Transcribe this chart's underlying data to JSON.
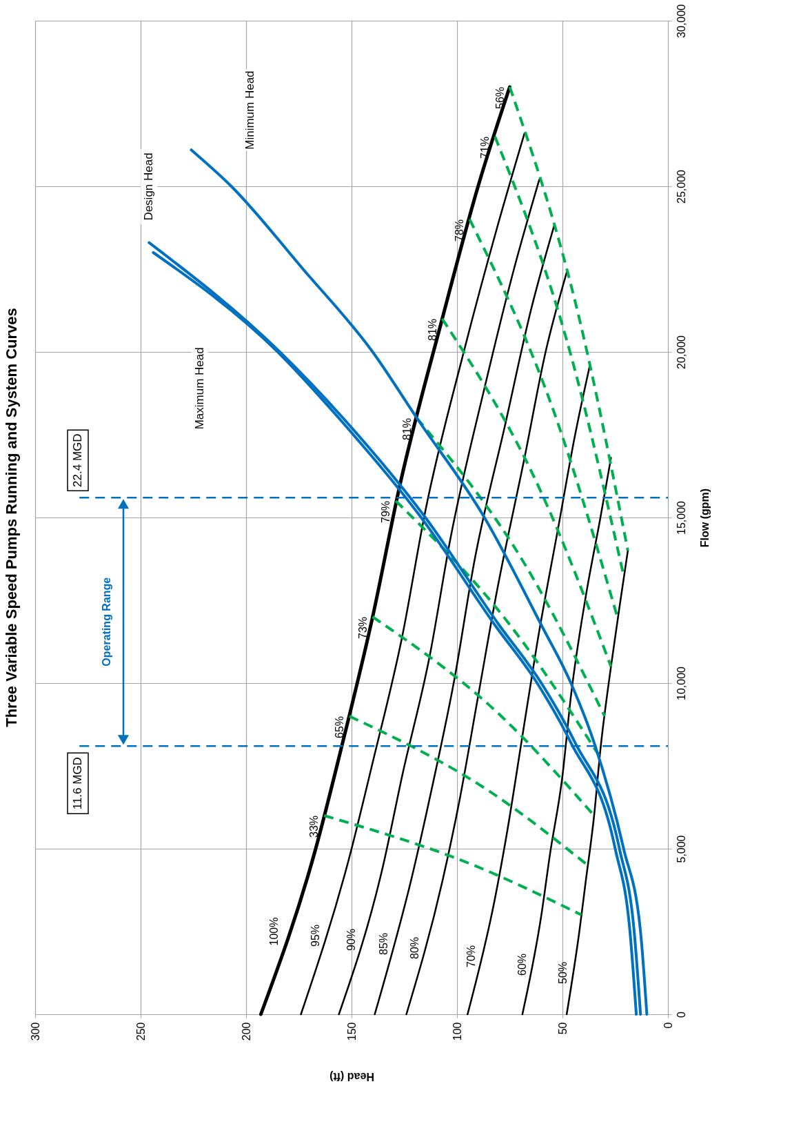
{
  "chart_data": {
    "type": "line",
    "title": "Three Variable Speed Pumps Running and System Curves",
    "xlabel": "Head (ft)",
    "ylabel": "Flow (gpm)",
    "xlim": [
      300,
      0
    ],
    "ylim": [
      0,
      30000
    ],
    "xticks": [
      300,
      250,
      200,
      150,
      100,
      50,
      0
    ],
    "yticks": [
      0,
      {
        "value": 5000,
        "label": "5,000"
      },
      {
        "value": 10000,
        "label": "10,000"
      },
      {
        "value": 15000,
        "label": "15,000"
      },
      {
        "value": 20000,
        "label": "20,000"
      },
      {
        "value": 25000,
        "label": "25,000"
      },
      {
        "value": 30000,
        "label": "30,000"
      }
    ],
    "grid": true,
    "line_style": "solid",
    "series": [
      {
        "name": "100%",
        "color": "#000000",
        "x": [
          193,
          167,
          155,
          140,
          127,
          107,
          90,
          75
        ],
        "values": [
          0,
          5000,
          8000,
          12000,
          16000,
          21000,
          25000,
          28000
        ]
      },
      {
        "name": "95%",
        "color": "#000000",
        "x": [
          174,
          151,
          140,
          126,
          115,
          97,
          81,
          68
        ],
        "values": [
          0,
          4750,
          7600,
          11400,
          15200,
          19950,
          23750,
          26600
        ]
      },
      {
        "name": "90%",
        "color": "#000000",
        "x": [
          156,
          135,
          126,
          113,
          103,
          87,
          73,
          61
        ],
        "values": [
          0,
          4500,
          7200,
          10800,
          14400,
          18900,
          22500,
          25200
        ]
      },
      {
        "name": "85%",
        "color": "#000000",
        "x": [
          139,
          121,
          112,
          101,
          92,
          77,
          65,
          54
        ],
        "values": [
          0,
          4250,
          6800,
          10200,
          13600,
          17850,
          21250,
          23800
        ]
      },
      {
        "name": "80%",
        "color": "#000000",
        "x": [
          124,
          107,
          99,
          90,
          81,
          68,
          58,
          48
        ],
        "values": [
          0,
          4000,
          6400,
          9600,
          12800,
          16800,
          20000,
          22400
        ]
      },
      {
        "name": "70%",
        "color": "#000000",
        "x": [
          95,
          82,
          76,
          69,
          62,
          52,
          44,
          37
        ],
        "values": [
          0,
          3500,
          5600,
          8400,
          11200,
          14700,
          17500,
          19600
        ]
      },
      {
        "name": "60%",
        "color": "#000000",
        "x": [
          69,
          60,
          56,
          50,
          46,
          39,
          32,
          27
        ],
        "values": [
          0,
          3000,
          4800,
          7200,
          9600,
          12600,
          15000,
          16800
        ]
      },
      {
        "name": "50%",
        "color": "#000000",
        "x": [
          48,
          42,
          39,
          35,
          32,
          27,
          22.5,
          19
        ],
        "values": [
          0,
          2500,
          4000,
          6000,
          8000,
          10500,
          12500,
          14000
        ]
      },
      {
        "name": "33%",
        "color": "#00b050",
        "line_style": "dashed",
        "x": [
          163,
          92,
          41
        ],
        "values": [
          6000,
          4500,
          3000
        ]
      },
      {
        "name": "65%",
        "color": "#00b050",
        "line_style": "dashed",
        "x": [
          151,
          85,
          38
        ],
        "values": [
          9000,
          6750,
          4500
        ]
      },
      {
        "name": "73%",
        "color": "#00b050",
        "line_style": "dashed",
        "x": [
          140,
          79,
          35
        ],
        "values": [
          12000,
          9000,
          6000
        ]
      },
      {
        "name": "79%",
        "color": "#00b050",
        "line_style": "dashed",
        "x": [
          129,
          73,
          32
        ],
        "values": [
          15500,
          11600,
          7750
        ]
      },
      {
        "name": "81%",
        "color": "#00b050",
        "line_style": "dashed",
        "x": [
          119,
          67,
          30
        ],
        "values": [
          18000,
          13500,
          9000
        ]
      },
      {
        "name": "81%",
        "color": "#00b050",
        "line_style": "dashed",
        "x": [
          107,
          60,
          27
        ],
        "values": [
          21000,
          15750,
          10500
        ]
      },
      {
        "name": "78%",
        "color": "#00b050",
        "line_style": "dashed",
        "x": [
          94,
          53,
          24
        ],
        "values": [
          24000,
          18000,
          12000
        ]
      },
      {
        "name": "71%",
        "color": "#00b050",
        "line_style": "dashed",
        "x": [
          82,
          46,
          21
        ],
        "values": [
          26500,
          19900,
          13250
        ]
      },
      {
        "name": "56%",
        "color": "#00b050",
        "line_style": "dashed",
        "x": [
          75,
          42,
          19
        ],
        "values": [
          28000,
          21000,
          14000
        ]
      },
      {
        "color": "#0070c0",
        "x": [
          15,
          18,
          25,
          46,
          62,
          82,
          117,
          156,
          185,
          244
        ],
        "values": [
          0,
          2500,
          5000,
          8200,
          10000,
          11750,
          15000,
          18000,
          20000,
          23000
        ]
      },
      {
        "color": "#0070c0",
        "x": [
          13,
          16,
          23,
          44,
          60,
          80,
          115,
          154,
          184,
          246
        ],
        "values": [
          0,
          2500,
          5000,
          8200,
          10000,
          11750,
          15000,
          18000,
          20000,
          23300
        ]
      },
      {
        "color": "#0070c0",
        "x": [
          10,
          13,
          21,
          35,
          46,
          60,
          87,
          119,
          140,
          173,
          207,
          226
        ],
        "values": [
          0,
          2500,
          5000,
          8200,
          10000,
          11750,
          15000,
          18000,
          20000,
          22500,
          25000,
          26100
        ]
      }
    ],
    "annotations": [
      "Maximum Head",
      "Design Head",
      "Minimum Head",
      "Operating Range"
    ],
    "ref_lines": [
      {
        "axis": "y",
        "value": 8100,
        "label": "11.6 MGD",
        "color": "#0070c0",
        "line_style": "dashed"
      },
      {
        "axis": "y",
        "value": 15600,
        "label": "22.4 MGD",
        "color": "#0070c0",
        "line_style": "dashed"
      }
    ]
  }
}
